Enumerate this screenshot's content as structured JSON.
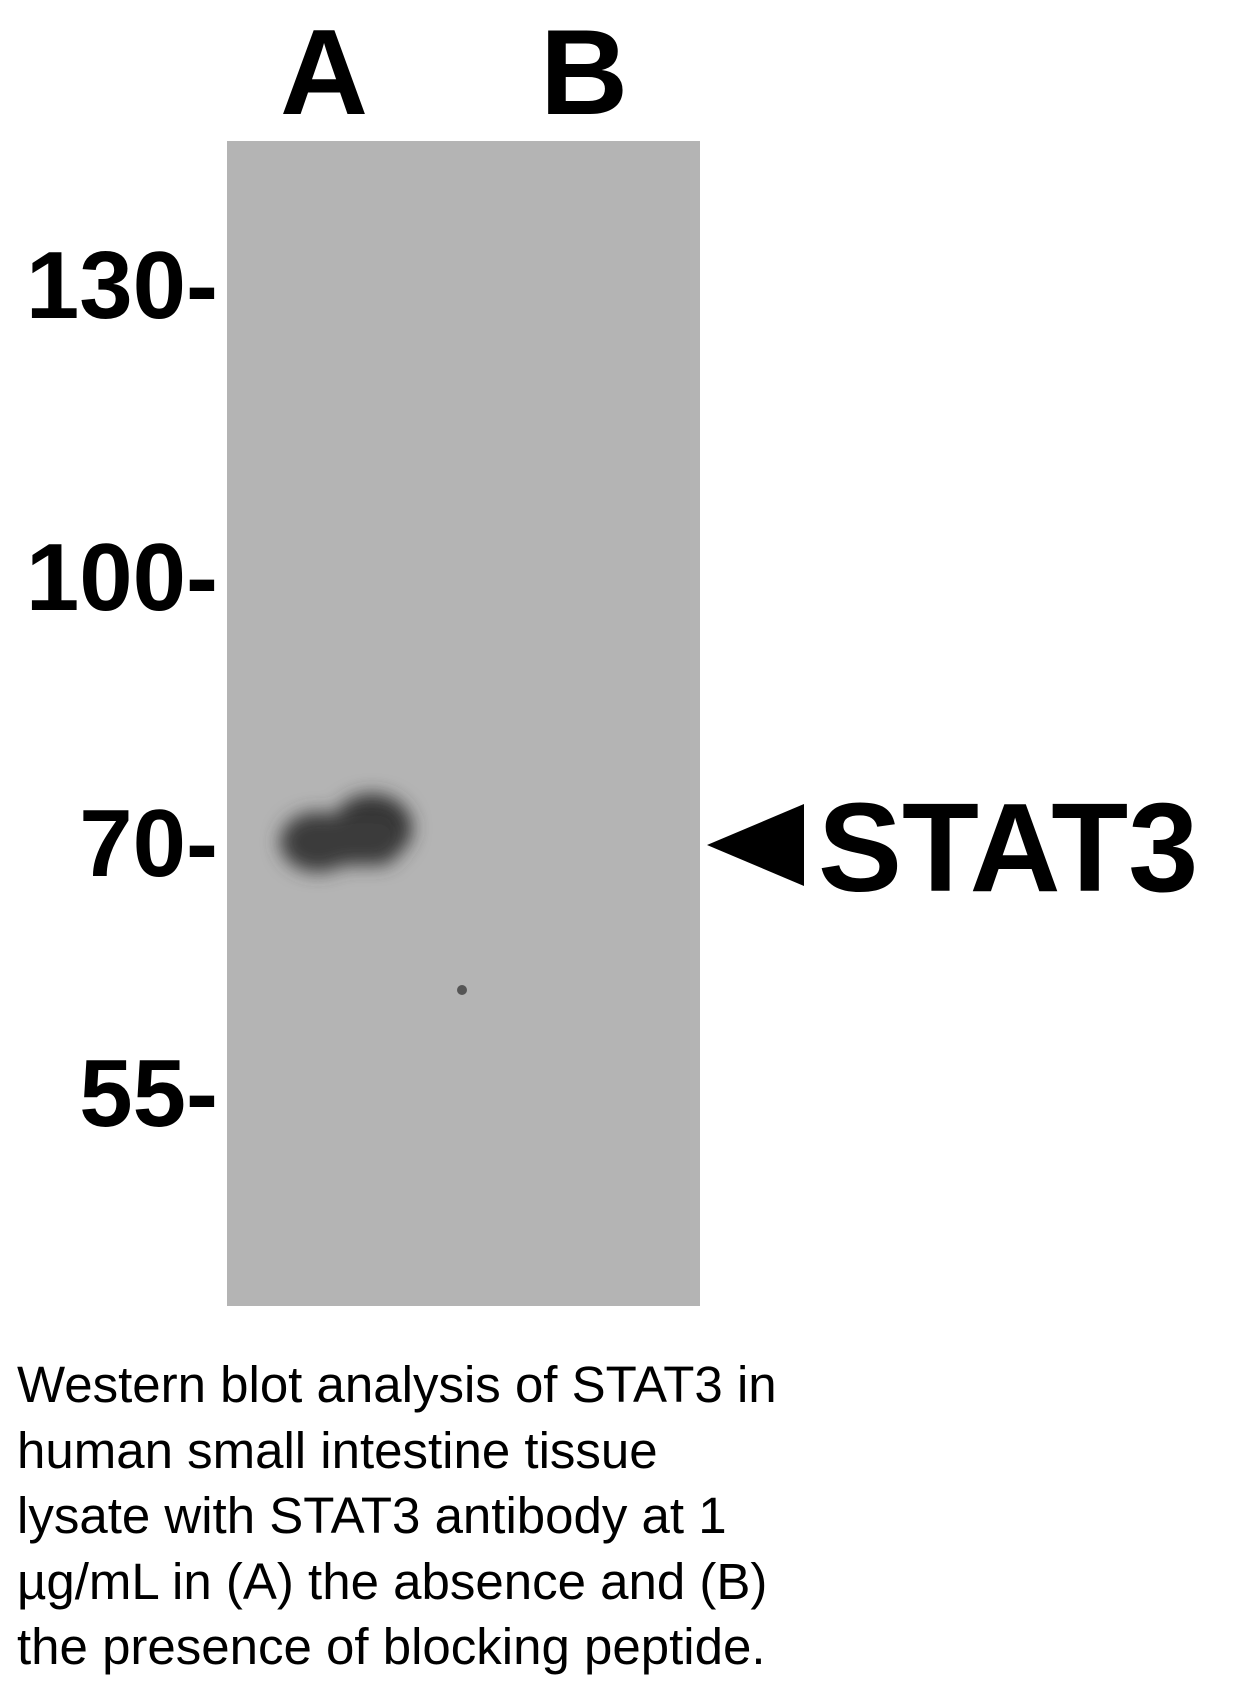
{
  "lanes": [
    {
      "label": "A"
    },
    {
      "label": "B"
    }
  ],
  "markers": [
    {
      "label": "130-",
      "kda": 130
    },
    {
      "label": "100-",
      "kda": 100
    },
    {
      "label": "70-",
      "kda": 70
    },
    {
      "label": "55-",
      "kda": 55
    }
  ],
  "target": {
    "label": "STAT3",
    "icon": "arrowhead-left-icon"
  },
  "colors": {
    "membrane": "#b4b4b4",
    "band": "#3a3a3a",
    "text": "#000000"
  },
  "caption": {
    "lines": [
      "Western blot analysis of STAT3 in",
      "human small intestine tissue",
      "lysate with STAT3 antibody at 1",
      "µg/mL in (A) the absence and (B)",
      "the presence of blocking peptide."
    ]
  }
}
